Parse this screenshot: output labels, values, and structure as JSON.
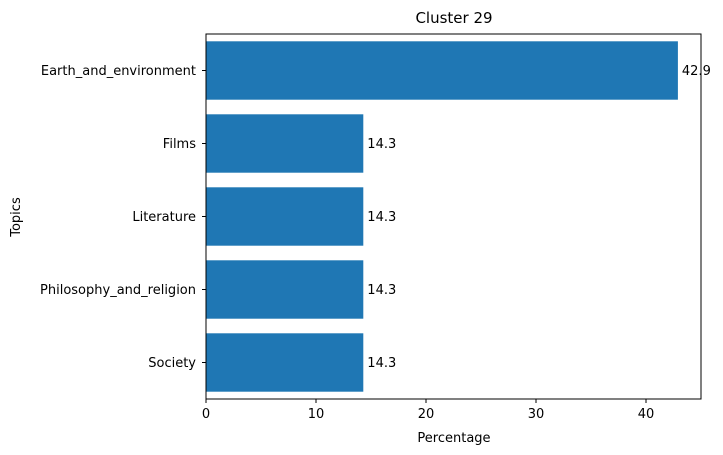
{
  "chart_data": {
    "type": "bar",
    "orientation": "horizontal",
    "title": "Cluster 29",
    "xlabel": "Percentage",
    "ylabel": "Topics",
    "categories": [
      "Earth_and_environment",
      "Films",
      "Literature",
      "Philosophy_and_religion",
      "Society"
    ],
    "values": [
      42.9,
      14.3,
      14.3,
      14.3,
      14.3
    ],
    "data_labels": [
      "42.9",
      "14.3",
      "14.3",
      "14.3",
      "14.3"
    ],
    "xlim": [
      0,
      45
    ],
    "xticks": [
      0,
      10,
      20,
      30,
      40
    ],
    "xtick_labels": [
      "0",
      "10",
      "20",
      "30",
      "40"
    ],
    "grid": false,
    "bar_color": "#1f77b4"
  }
}
